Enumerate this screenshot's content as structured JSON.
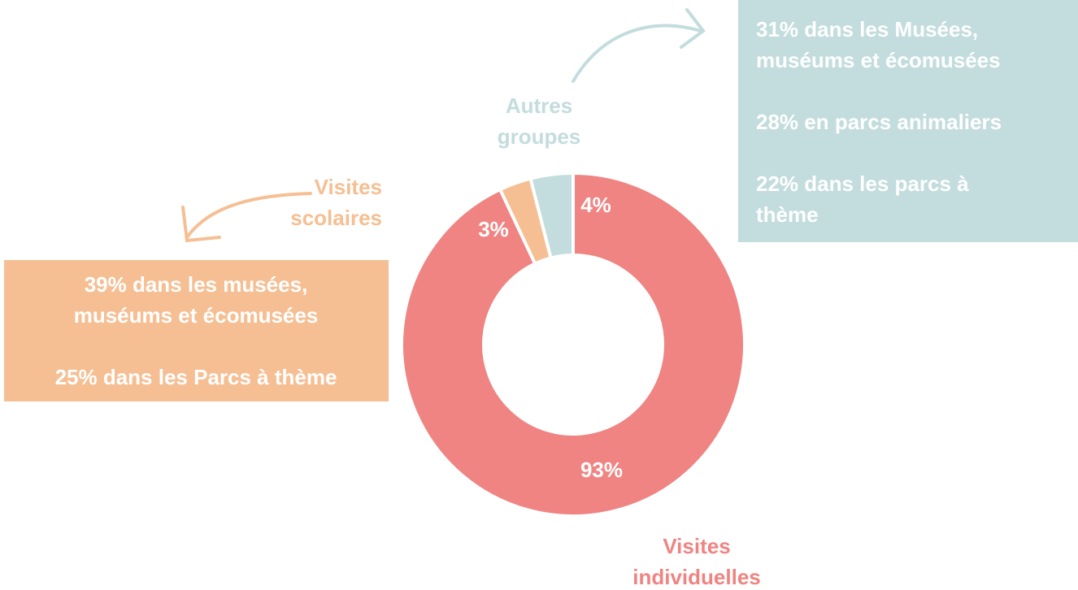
{
  "chart_data": {
    "type": "donut",
    "categories": [
      "Visites individuelles",
      "Visites scolaires",
      "Autres groupes"
    ],
    "values": [
      93,
      3,
      4
    ],
    "value_labels": [
      "93%",
      "3%",
      "4%"
    ],
    "colors": [
      "#ef8482",
      "#f5bf93",
      "#c3dcdd"
    ],
    "label_colors": [
      "#ef8482",
      "#f5bf93",
      "#c3dcdd"
    ],
    "annotations": [
      {
        "paragraphs": [
          [
            "39% dans les musées,",
            "muséums et écomusées"
          ],
          [
            "25% dans les Parcs à thème"
          ]
        ],
        "color": "#f5bf93"
      },
      {
        "paragraphs": [
          [
            "31% dans les Musées,",
            "muséums et écomusées"
          ],
          [
            "28% en parcs animaliers"
          ],
          [
            "22% dans les parcs à",
            "thème"
          ]
        ],
        "color": "#c3dcdd"
      }
    ]
  }
}
